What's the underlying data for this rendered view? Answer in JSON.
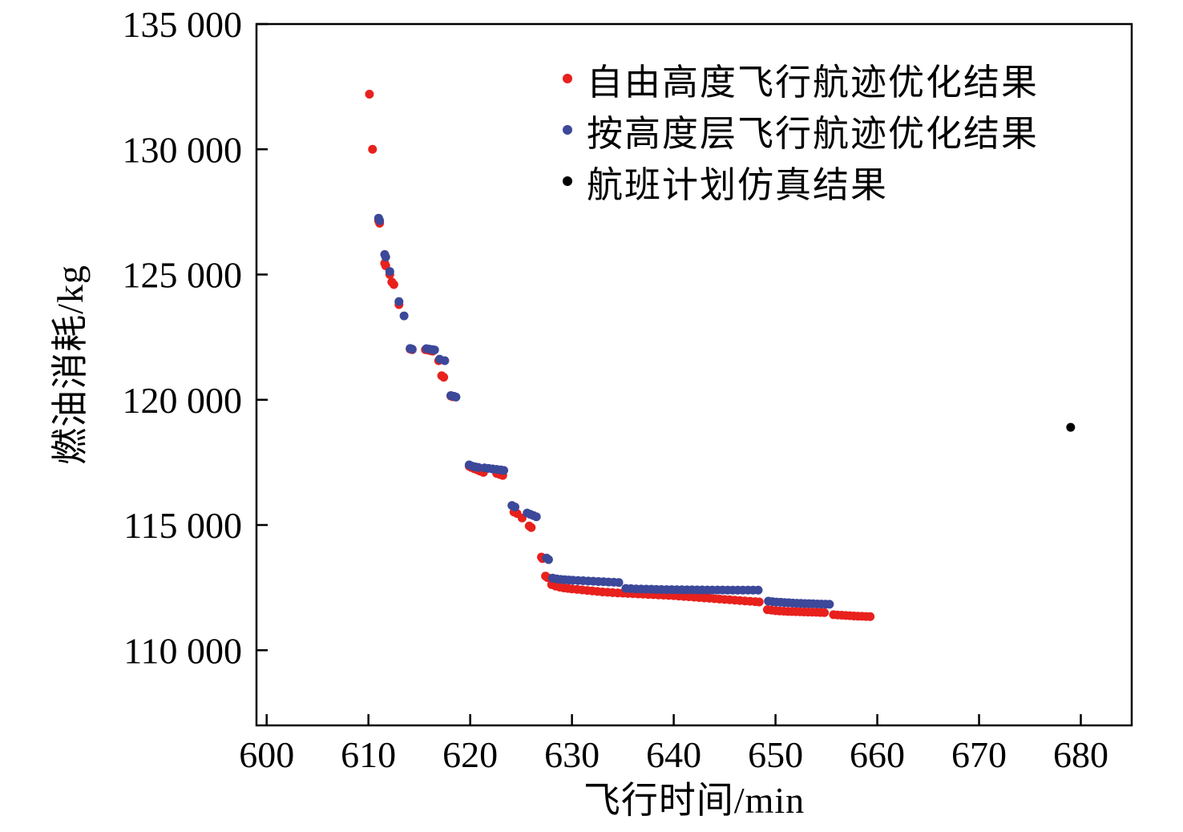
{
  "chart_data": {
    "type": "scatter",
    "title": "",
    "xlabel": "飞行时间/min",
    "ylabel": "燃油消耗/kg",
    "xlim": [
      599,
      685
    ],
    "ylim": [
      107000,
      135000
    ],
    "grid": false,
    "legend_position": "inside-top-right",
    "xticks": [
      600,
      610,
      620,
      630,
      640,
      650,
      660,
      670,
      680
    ],
    "xtick_labels": [
      "600",
      "610",
      "620",
      "630",
      "640",
      "650",
      "660",
      "670",
      "680"
    ],
    "yticks": [
      110000,
      115000,
      120000,
      125000,
      130000,
      135000
    ],
    "ytick_labels": [
      "110 000",
      "115 000",
      "120 000",
      "125 000",
      "130 000",
      "135 000"
    ],
    "series": [
      {
        "name": "自由高度飞行航迹优化结果",
        "color": "#e8211d",
        "marker": "circle",
        "marker_size": 5.5,
        "points": [
          [
            610.1,
            132200
          ],
          [
            610.4,
            130000
          ],
          [
            611.0,
            127150
          ],
          [
            611.1,
            127050
          ],
          [
            611.6,
            125450
          ],
          [
            611.7,
            125350
          ],
          [
            612.1,
            125000
          ],
          [
            612.3,
            124700
          ],
          [
            612.5,
            124600
          ],
          [
            613.0,
            123800
          ],
          [
            614.1,
            122020
          ],
          [
            614.3,
            122000
          ],
          [
            615.6,
            122000
          ],
          [
            615.9,
            121980
          ],
          [
            616.1,
            121960
          ],
          [
            616.3,
            121940
          ],
          [
            616.9,
            121560
          ],
          [
            617.2,
            120960
          ],
          [
            617.4,
            120900
          ],
          [
            618.1,
            120150
          ],
          [
            618.3,
            120120
          ],
          [
            619.9,
            117350
          ],
          [
            620.1,
            117300
          ],
          [
            620.4,
            117250
          ],
          [
            620.7,
            117200
          ],
          [
            621.0,
            117150
          ],
          [
            621.3,
            117100
          ],
          [
            622.6,
            117060
          ],
          [
            622.9,
            117020
          ],
          [
            623.2,
            116980
          ],
          [
            624.3,
            115520
          ],
          [
            624.6,
            115460
          ],
          [
            625.1,
            115280
          ],
          [
            625.8,
            114960
          ],
          [
            626.0,
            114900
          ],
          [
            627.0,
            113720
          ],
          [
            627.1,
            113660
          ],
          [
            627.4,
            112960
          ],
          [
            627.6,
            112900
          ],
          [
            628.0,
            112620
          ],
          [
            628.4,
            112560
          ],
          [
            628.8,
            112520
          ],
          [
            629.2,
            112490
          ],
          [
            629.6,
            112470
          ],
          [
            630.0,
            112450
          ],
          [
            630.5,
            112430
          ],
          [
            631.0,
            112410
          ],
          [
            631.5,
            112390
          ],
          [
            632.0,
            112370
          ],
          [
            632.5,
            112350
          ],
          [
            633.0,
            112330
          ],
          [
            633.5,
            112315
          ],
          [
            634.0,
            112300
          ],
          [
            634.5,
            112290
          ],
          [
            635.0,
            112280
          ],
          [
            635.5,
            112270
          ],
          [
            636.0,
            112260
          ],
          [
            636.5,
            112250
          ],
          [
            637.0,
            112240
          ],
          [
            637.5,
            112230
          ],
          [
            638.0,
            112220
          ],
          [
            638.5,
            112210
          ],
          [
            639.0,
            112200
          ],
          [
            639.5,
            112190
          ],
          [
            640.0,
            112180
          ],
          [
            640.5,
            112165
          ],
          [
            641.0,
            112150
          ],
          [
            641.5,
            112135
          ],
          [
            642.0,
            112120
          ],
          [
            642.5,
            112105
          ],
          [
            643.0,
            112090
          ],
          [
            643.5,
            112075
          ],
          [
            644.0,
            112060
          ],
          [
            644.5,
            112045
          ],
          [
            645.0,
            112030
          ],
          [
            645.5,
            112015
          ],
          [
            646.0,
            112000
          ],
          [
            646.5,
            111985
          ],
          [
            647.0,
            111970
          ],
          [
            647.5,
            111955
          ],
          [
            648.0,
            111940
          ],
          [
            648.4,
            111930
          ],
          [
            649.2,
            111620
          ],
          [
            649.6,
            111600
          ],
          [
            650.0,
            111580
          ],
          [
            650.4,
            111570
          ],
          [
            650.8,
            111560
          ],
          [
            651.2,
            111550
          ],
          [
            651.6,
            111545
          ],
          [
            652.0,
            111540
          ],
          [
            652.4,
            111535
          ],
          [
            652.8,
            111530
          ],
          [
            653.2,
            111525
          ],
          [
            653.6,
            111520
          ],
          [
            654.0,
            111515
          ],
          [
            654.4,
            111510
          ],
          [
            654.8,
            111505
          ],
          [
            655.7,
            111420
          ],
          [
            656.1,
            111410
          ],
          [
            656.5,
            111400
          ],
          [
            656.9,
            111390
          ],
          [
            657.3,
            111380
          ],
          [
            657.7,
            111370
          ],
          [
            658.1,
            111360
          ],
          [
            658.5,
            111355
          ],
          [
            658.9,
            111350
          ],
          [
            659.3,
            111345
          ]
        ]
      },
      {
        "name": "按高度层飞行航迹优化结果",
        "color": "#3c4899",
        "marker": "circle",
        "marker_size": 5.5,
        "points": [
          [
            611.0,
            127250
          ],
          [
            611.1,
            127150
          ],
          [
            611.6,
            125800
          ],
          [
            611.7,
            125700
          ],
          [
            612.1,
            125120
          ],
          [
            613.0,
            123920
          ],
          [
            613.5,
            123350
          ],
          [
            614.1,
            122050
          ],
          [
            614.3,
            122020
          ],
          [
            615.7,
            122040
          ],
          [
            616.0,
            122020
          ],
          [
            616.3,
            122000
          ],
          [
            616.5,
            121990
          ],
          [
            617.0,
            121620
          ],
          [
            617.5,
            121560
          ],
          [
            618.1,
            120170
          ],
          [
            618.4,
            120140
          ],
          [
            618.6,
            120110
          ],
          [
            619.9,
            117400
          ],
          [
            620.2,
            117350
          ],
          [
            620.5,
            117320
          ],
          [
            620.8,
            117300
          ],
          [
            621.4,
            117280
          ],
          [
            621.8,
            117260
          ],
          [
            622.2,
            117240
          ],
          [
            622.6,
            117220
          ],
          [
            623.0,
            117200
          ],
          [
            623.3,
            117180
          ],
          [
            624.1,
            115780
          ],
          [
            624.4,
            115720
          ],
          [
            625.6,
            115480
          ],
          [
            625.9,
            115430
          ],
          [
            626.2,
            115380
          ],
          [
            626.5,
            115330
          ],
          [
            627.5,
            113680
          ],
          [
            627.7,
            113620
          ],
          [
            628.1,
            112880
          ],
          [
            628.5,
            112850
          ],
          [
            628.9,
            112830
          ],
          [
            629.3,
            112815
          ],
          [
            629.7,
            112805
          ],
          [
            630.1,
            112795
          ],
          [
            630.6,
            112785
          ],
          [
            631.1,
            112775
          ],
          [
            631.6,
            112765
          ],
          [
            632.1,
            112755
          ],
          [
            632.6,
            112745
          ],
          [
            633.1,
            112735
          ],
          [
            633.6,
            112725
          ],
          [
            634.1,
            112715
          ],
          [
            634.6,
            112705
          ],
          [
            635.3,
            112470
          ],
          [
            635.8,
            112460
          ],
          [
            636.3,
            112450
          ],
          [
            636.8,
            112445
          ],
          [
            637.3,
            112440
          ],
          [
            637.8,
            112435
          ],
          [
            638.3,
            112430
          ],
          [
            638.8,
            112425
          ],
          [
            639.3,
            112422
          ],
          [
            639.8,
            112420
          ],
          [
            640.3,
            112418
          ],
          [
            640.8,
            112416
          ],
          [
            641.3,
            112414
          ],
          [
            641.8,
            112412
          ],
          [
            642.3,
            112410
          ],
          [
            642.8,
            112408
          ],
          [
            643.3,
            112406
          ],
          [
            643.8,
            112405
          ],
          [
            644.3,
            112404
          ],
          [
            644.8,
            112403
          ],
          [
            645.3,
            112402
          ],
          [
            645.8,
            112401
          ],
          [
            646.3,
            112400
          ],
          [
            646.8,
            112400
          ],
          [
            647.3,
            112400
          ],
          [
            647.8,
            112400
          ],
          [
            648.3,
            112400
          ],
          [
            649.3,
            111960
          ],
          [
            649.7,
            111940
          ],
          [
            650.1,
            111925
          ],
          [
            650.5,
            111915
          ],
          [
            650.9,
            111905
          ],
          [
            651.3,
            111895
          ],
          [
            651.7,
            111885
          ],
          [
            652.1,
            111878
          ],
          [
            652.5,
            111872
          ],
          [
            652.9,
            111866
          ],
          [
            653.3,
            111860
          ],
          [
            653.7,
            111855
          ],
          [
            654.1,
            111850
          ],
          [
            654.5,
            111845
          ],
          [
            654.9,
            111840
          ],
          [
            655.3,
            111835
          ]
        ]
      },
      {
        "name": "航班计划仿真结果",
        "color": "#000000",
        "marker": "circle",
        "marker_size": 5.5,
        "points": [
          [
            679,
            118900
          ]
        ]
      }
    ]
  }
}
